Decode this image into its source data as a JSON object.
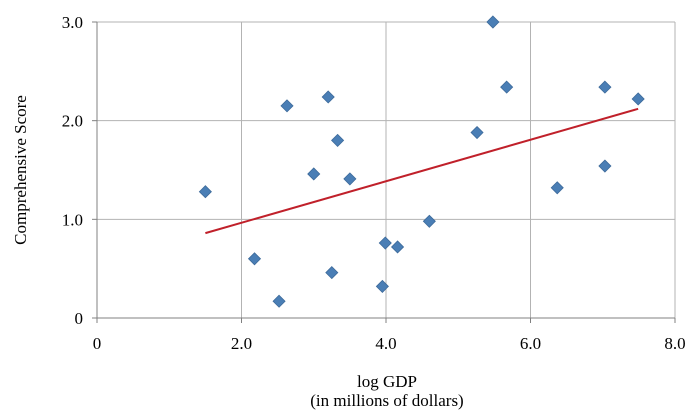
{
  "chart_data": {
    "type": "scatter",
    "xlabel": "log GDP",
    "xlabel_sub": "(in millions of dollars)",
    "ylabel": "Comprehensive Score",
    "xlim": [
      0,
      8
    ],
    "ylim": [
      0,
      3
    ],
    "x_ticks": [
      0,
      2,
      4,
      6,
      8
    ],
    "x_tick_labels": [
      "0",
      "2.0",
      "4.0",
      "6.0",
      "8.0"
    ],
    "y_ticks": [
      0,
      1,
      2,
      3
    ],
    "y_tick_labels": [
      "0",
      "1.0",
      "2.0",
      "3.0"
    ],
    "grid": true,
    "legend": "none",
    "series": [
      {
        "marker": "diamond",
        "color": "#4a7eb5",
        "points": [
          {
            "x": 1.5,
            "y": 1.28
          },
          {
            "x": 2.18,
            "y": 0.6
          },
          {
            "x": 2.52,
            "y": 0.17
          },
          {
            "x": 2.63,
            "y": 2.15
          },
          {
            "x": 3.0,
            "y": 1.46
          },
          {
            "x": 3.2,
            "y": 2.24
          },
          {
            "x": 3.25,
            "y": 0.46
          },
          {
            "x": 3.33,
            "y": 1.8
          },
          {
            "x": 3.5,
            "y": 1.41
          },
          {
            "x": 3.95,
            "y": 0.32
          },
          {
            "x": 3.99,
            "y": 0.76
          },
          {
            "x": 4.16,
            "y": 0.72
          },
          {
            "x": 4.6,
            "y": 0.98
          },
          {
            "x": 5.26,
            "y": 1.88
          },
          {
            "x": 5.48,
            "y": 3.0
          },
          {
            "x": 5.67,
            "y": 2.34
          },
          {
            "x": 6.37,
            "y": 1.32
          },
          {
            "x": 7.03,
            "y": 2.34
          },
          {
            "x": 7.03,
            "y": 1.54
          },
          {
            "x": 7.49,
            "y": 2.22
          }
        ]
      }
    ],
    "trendline": {
      "type": "linear",
      "color": "#c0202a",
      "x": [
        1.5,
        7.49
      ],
      "y": [
        0.86,
        2.12
      ]
    }
  }
}
